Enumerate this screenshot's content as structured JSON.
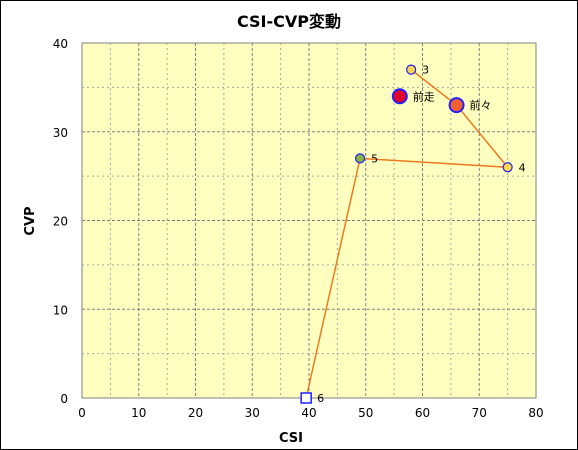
{
  "chart_data": {
    "type": "scatter",
    "title": "CSI-CVP変動",
    "xlabel": "CSI",
    "ylabel": "CVP",
    "xlim": [
      0,
      80
    ],
    "ylim": [
      0,
      40
    ],
    "xticks": [
      0,
      10,
      20,
      30,
      40,
      50,
      60,
      70,
      80
    ],
    "yticks": [
      0,
      10,
      20,
      30,
      40
    ],
    "grid": true,
    "plot_background": "#FFFFC0",
    "line_color": "#F07820",
    "line_order": [
      "3",
      "前々",
      "4",
      "5",
      "6"
    ],
    "points": [
      {
        "label": "前走",
        "x": 56,
        "y": 34,
        "fill": "#E0002A",
        "stroke": "#2020FF",
        "shape": "circle",
        "size": "large"
      },
      {
        "label": "前々",
        "x": 66,
        "y": 33,
        "fill": "#F06030",
        "stroke": "#2020FF",
        "shape": "circle",
        "size": "large"
      },
      {
        "label": "3",
        "x": 58,
        "y": 37,
        "fill": "#FFD84A",
        "stroke": "#2020FF",
        "shape": "circle",
        "size": "small"
      },
      {
        "label": "4",
        "x": 75,
        "y": 26,
        "fill": "#FFD84A",
        "stroke": "#2020FF",
        "shape": "circle",
        "size": "small"
      },
      {
        "label": "5",
        "x": 49,
        "y": 27,
        "fill": "#8CB43C",
        "stroke": "#2020FF",
        "shape": "circle",
        "size": "small"
      },
      {
        "label": "6",
        "x": 39.5,
        "y": 0,
        "fill": "#FFFFFF",
        "stroke": "#2020FF",
        "shape": "square",
        "size": "small"
      }
    ]
  }
}
